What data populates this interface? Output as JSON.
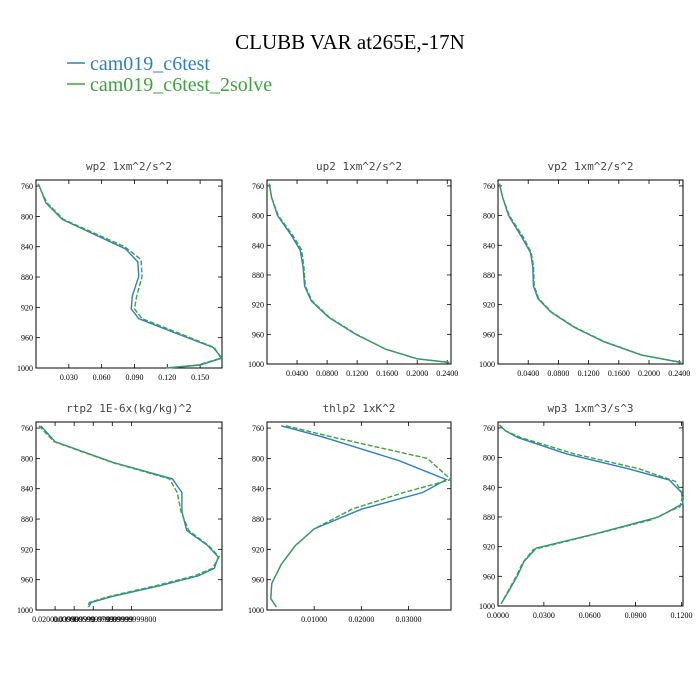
{
  "title": "CLUBB VAR at265E,-17N",
  "legend": [
    {
      "label": "cam019_c6test",
      "color": "#2f7fbf",
      "dash": "solid"
    },
    {
      "label": "cam019_c6test_2solve",
      "color": "#3ea23e",
      "dash": "dashed"
    }
  ],
  "chart_data": [
    {
      "type": "line",
      "title": "wp2  1xm^2/s^2",
      "ylim": [
        1000,
        752
      ],
      "xlim": [
        0,
        0.17
      ],
      "xticks": [
        0.03,
        0.06,
        0.09,
        0.12,
        0.15
      ],
      "xtick_labels": [
        "0.030",
        "0.060",
        "0.090",
        "0.120",
        "0.150"
      ],
      "yticks": [
        760,
        800,
        840,
        880,
        920,
        960,
        1000
      ],
      "series": [
        {
          "name": "cam019_c6test",
          "points": [
            [
              0.002,
              757
            ],
            [
              0.005,
              767
            ],
            [
              0.009,
              782
            ],
            [
              0.024,
              804
            ],
            [
              0.082,
              843
            ],
            [
              0.093,
              860
            ],
            [
              0.094,
              879
            ],
            [
              0.088,
              905
            ],
            [
              0.087,
              922
            ],
            [
              0.094,
              935
            ],
            [
              0.124,
              952
            ],
            [
              0.162,
              973
            ],
            [
              0.17,
              987
            ],
            [
              0.15,
              996
            ],
            [
              0.12,
              1000
            ]
          ]
        },
        {
          "name": "cam019_c6test_2solve",
          "points": [
            [
              0.002,
              757
            ],
            [
              0.005,
              767
            ],
            [
              0.01,
              782
            ],
            [
              0.025,
              804
            ],
            [
              0.081,
              840
            ],
            [
              0.096,
              857
            ],
            [
              0.097,
              879
            ],
            [
              0.092,
              905
            ],
            [
              0.09,
              922
            ],
            [
              0.097,
              935
            ],
            [
              0.127,
              952
            ],
            [
              0.163,
              973
            ],
            [
              0.169,
              987
            ],
            [
              0.148,
              996
            ],
            [
              0.118,
              1000
            ]
          ]
        }
      ]
    },
    {
      "type": "line",
      "title": "up2  1xm^2/s^2",
      "ylim": [
        1000,
        752
      ],
      "xlim": [
        0,
        0.245
      ],
      "xticks": [
        0.04,
        0.08,
        0.12,
        0.16,
        0.2,
        0.24
      ],
      "xtick_labels": [
        "0.0400",
        "0.0800",
        "0.1200",
        "0.1600",
        "0.2000",
        "0.2400"
      ],
      "yticks": [
        760,
        800,
        840,
        880,
        920,
        960,
        1000
      ],
      "series": [
        {
          "name": "cam019_c6test",
          "points": [
            [
              0.003,
              757
            ],
            [
              0.006,
              775
            ],
            [
              0.014,
              800
            ],
            [
              0.032,
              826
            ],
            [
              0.044,
              846
            ],
            [
              0.048,
              868
            ],
            [
              0.05,
              895
            ],
            [
              0.059,
              915
            ],
            [
              0.082,
              937
            ],
            [
              0.118,
              960
            ],
            [
              0.158,
              980
            ],
            [
              0.2,
              993
            ],
            [
              0.243,
              998
            ]
          ]
        },
        {
          "name": "cam019_c6test_2solve",
          "points": [
            [
              0.003,
              757
            ],
            [
              0.006,
              775
            ],
            [
              0.015,
              800
            ],
            [
              0.034,
              826
            ],
            [
              0.046,
              846
            ],
            [
              0.049,
              868
            ],
            [
              0.051,
              895
            ],
            [
              0.06,
              915
            ],
            [
              0.083,
              937
            ],
            [
              0.119,
              960
            ],
            [
              0.158,
              980
            ],
            [
              0.2,
              993
            ],
            [
              0.243,
              998
            ]
          ]
        }
      ]
    },
    {
      "type": "line",
      "title": "vp2  1xm^2/s^2",
      "ylim": [
        1000,
        752
      ],
      "xlim": [
        0,
        0.245
      ],
      "xticks": [
        0.04,
        0.08,
        0.12,
        0.16,
        0.2,
        0.24
      ],
      "xtick_labels": [
        "0.0400",
        "0.0800",
        "0.1200",
        "0.1600",
        "0.2000",
        "0.2400"
      ],
      "yticks": [
        760,
        800,
        840,
        880,
        920,
        960,
        1000
      ],
      "series": [
        {
          "name": "cam019_c6test",
          "points": [
            [
              0.002,
              757
            ],
            [
              0.006,
              775
            ],
            [
              0.014,
              800
            ],
            [
              0.032,
              830
            ],
            [
              0.043,
              850
            ],
            [
              0.046,
              868
            ],
            [
              0.047,
              895
            ],
            [
              0.053,
              912
            ],
            [
              0.07,
              930
            ],
            [
              0.1,
              950
            ],
            [
              0.14,
              970
            ],
            [
              0.19,
              988
            ],
            [
              0.243,
              998
            ]
          ]
        },
        {
          "name": "cam019_c6test_2solve",
          "points": [
            [
              0.002,
              757
            ],
            [
              0.006,
              775
            ],
            [
              0.015,
              800
            ],
            [
              0.034,
              830
            ],
            [
              0.044,
              850
            ],
            [
              0.047,
              868
            ],
            [
              0.048,
              895
            ],
            [
              0.054,
              912
            ],
            [
              0.071,
              930
            ],
            [
              0.101,
              950
            ],
            [
              0.141,
              970
            ],
            [
              0.191,
              988
            ],
            [
              0.243,
              998
            ]
          ]
        }
      ]
    },
    {
      "type": "line",
      "title": "rtp2  1E-6x(kg/kg)^2",
      "ylim": [
        1000,
        752
      ],
      "xlim": [
        0,
        0.195
      ],
      "xticks": [
        0.02,
        0.04,
        0.06,
        0.08,
        0.1
      ],
      "xtick_labels": [
        "0.0200000000",
        "0.039999999",
        "0.059999999",
        "0.079999999",
        "0.09999999800"
      ],
      "yticks": [
        760,
        800,
        840,
        880,
        920,
        960,
        1000
      ],
      "series": [
        {
          "name": "cam019_c6test",
          "points": [
            [
              0.005,
              757
            ],
            [
              0.02,
              778
            ],
            [
              0.08,
              805
            ],
            [
              0.143,
              827
            ],
            [
              0.153,
              845
            ],
            [
              0.153,
              870
            ],
            [
              0.158,
              895
            ],
            [
              0.18,
              915
            ],
            [
              0.191,
              930
            ],
            [
              0.187,
              945
            ],
            [
              0.17,
              955
            ],
            [
              0.13,
              968
            ],
            [
              0.08,
              982
            ],
            [
              0.058,
              990
            ],
            [
              0.055,
              996
            ]
          ]
        },
        {
          "name": "cam019_c6test_2solve",
          "points": [
            [
              0.003,
              757
            ],
            [
              0.019,
              778
            ],
            [
              0.079,
              805
            ],
            [
              0.14,
              827
            ],
            [
              0.148,
              845
            ],
            [
              0.152,
              870
            ],
            [
              0.16,
              895
            ],
            [
              0.181,
              915
            ],
            [
              0.192,
              930
            ],
            [
              0.185,
              945
            ],
            [
              0.166,
              955
            ],
            [
              0.126,
              968
            ],
            [
              0.077,
              982
            ],
            [
              0.056,
              990
            ],
            [
              0.054,
              996
            ]
          ]
        }
      ]
    },
    {
      "type": "line",
      "title": "thlp2  1xK^2",
      "ylim": [
        1000,
        752
      ],
      "xlim": [
        0,
        0.039
      ],
      "xticks": [
        0.01,
        0.02,
        0.03
      ],
      "xtick_labels": [
        "0.01000",
        "0.02000",
        "0.03000"
      ],
      "yticks": [
        760,
        800,
        840,
        880,
        920,
        960,
        1000
      ],
      "series": [
        {
          "name": "cam019_c6test",
          "points": [
            [
              0.003,
              757
            ],
            [
              0.012,
              772
            ],
            [
              0.028,
              803
            ],
            [
              0.038,
              828
            ],
            [
              0.033,
              845
            ],
            [
              0.02,
              867
            ],
            [
              0.01,
              893
            ],
            [
              0.006,
              915
            ],
            [
              0.003,
              940
            ],
            [
              0.001,
              965
            ],
            [
              0.0008,
              985
            ],
            [
              0.002,
              996
            ]
          ]
        },
        {
          "name": "cam019_c6test_2solve",
          "points": [
            [
              0.004,
              757
            ],
            [
              0.014,
              772
            ],
            [
              0.034,
              800
            ],
            [
              0.039,
              828
            ],
            [
              0.029,
              845
            ],
            [
              0.018,
              867
            ],
            [
              0.01,
              893
            ],
            [
              0.006,
              915
            ],
            [
              0.003,
              940
            ],
            [
              0.001,
              965
            ],
            [
              0.0008,
              985
            ],
            [
              0.002,
              996
            ]
          ]
        }
      ]
    },
    {
      "type": "line",
      "title": "wp3  1xm^3/s^3",
      "ylim": [
        1000,
        752
      ],
      "xlim": [
        0,
        0.121
      ],
      "xticks": [
        0,
        0.03,
        0.06,
        0.09,
        0.12
      ],
      "xtick_labels": [
        "0.0000",
        "0.0300",
        "0.0600",
        "0.0900",
        "0.1200"
      ],
      "yticks": [
        760,
        800,
        840,
        880,
        920,
        960,
        1000
      ],
      "series": [
        {
          "name": "cam019_c6test",
          "points": [
            [
              0.001,
              756
            ],
            [
              0.005,
              764
            ],
            [
              0.013,
              773
            ],
            [
              0.045,
              795
            ],
            [
              0.085,
              815
            ],
            [
              0.112,
              830
            ],
            [
              0.12,
              847
            ],
            [
              0.121,
              862
            ],
            [
              0.105,
              880
            ],
            [
              0.065,
              902
            ],
            [
              0.025,
              922
            ],
            [
              0.017,
              940
            ],
            [
              0.013,
              958
            ],
            [
              0.007,
              980
            ],
            [
              0.002,
              997
            ]
          ]
        },
        {
          "name": "cam019_c6test_2solve",
          "points": [
            [
              0.001,
              756
            ],
            [
              0.005,
              764
            ],
            [
              0.015,
              773
            ],
            [
              0.05,
              795
            ],
            [
              0.092,
              815
            ],
            [
              0.116,
              832
            ],
            [
              0.121,
              850
            ],
            [
              0.119,
              866
            ],
            [
              0.1,
              884
            ],
            [
              0.06,
              905
            ],
            [
              0.023,
              924
            ],
            [
              0.016,
              942
            ],
            [
              0.012,
              960
            ],
            [
              0.006,
              982
            ],
            [
              0.002,
              997
            ]
          ]
        }
      ]
    }
  ]
}
